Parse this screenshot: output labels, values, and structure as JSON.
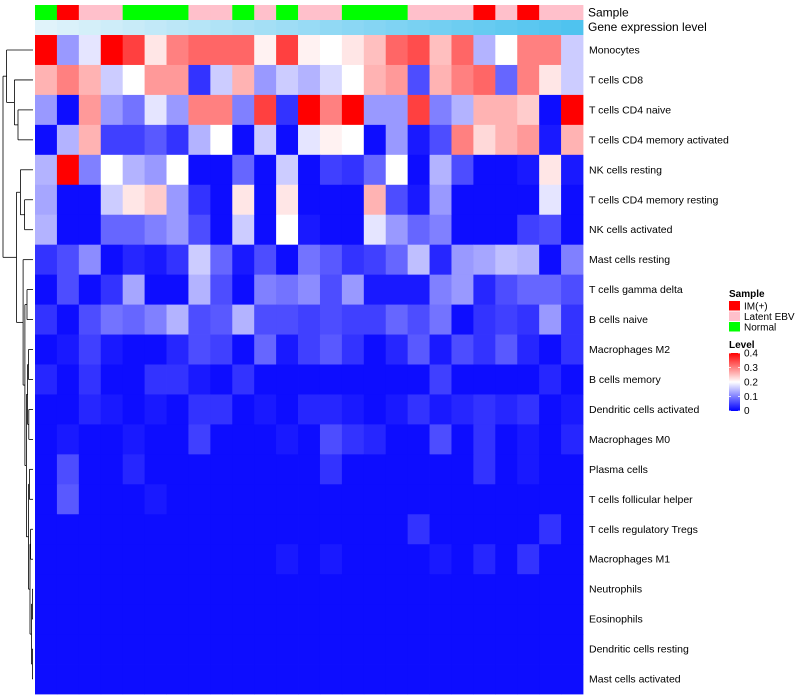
{
  "chart_data": {
    "type": "heatmap",
    "annotation_labels": [
      "Sample",
      "Gene expression level"
    ],
    "columns": {
      "sample_group": [
        "Normal",
        "IM(+)",
        "Latent EBV",
        "Latent EBV",
        "Normal",
        "Normal",
        "Normal",
        "Latent EBV",
        "Latent EBV",
        "Normal",
        "Latent EBV",
        "Normal",
        "Latent EBV",
        "Latent EBV",
        "Normal",
        "Normal",
        "Normal",
        "Latent EBV",
        "Latent EBV",
        "Latent EBV",
        "IM(+)",
        "Latent EBV",
        "IM(+)",
        "Latent EBV",
        "Latent EBV"
      ],
      "gene_expression_level": [
        0.02,
        0.04,
        0.06,
        0.08,
        0.1,
        0.12,
        0.14,
        0.16,
        0.18,
        0.2,
        0.22,
        0.24,
        0.26,
        0.28,
        0.3,
        0.32,
        0.34,
        0.36,
        0.38,
        0.4,
        0.42,
        0.44,
        0.46,
        0.48,
        0.5
      ]
    },
    "rows": [
      "Monocytes",
      "T cells CD8",
      "T cells CD4 naive",
      "T cells CD4 memory activated",
      "NK cells resting",
      "T cells CD4 memory resting",
      "NK cells activated",
      "Mast cells resting",
      "T cells gamma delta",
      "B cells naive",
      "Macrophages M2",
      "B cells memory",
      "Dendritic cells activated",
      "Macrophages M0",
      "Plasma cells",
      "T cells follicular helper",
      "T cells regulatory  Tregs",
      "Macrophages M1",
      "Neutrophils",
      "Eosinophils",
      "Dendritic cells resting",
      "Mast cells activated"
    ],
    "values": [
      [
        0.4,
        0.12,
        0.18,
        0.4,
        0.35,
        0.22,
        0.3,
        0.32,
        0.32,
        0.32,
        0.21,
        0.35,
        0.21,
        0.2,
        0.22,
        0.25,
        0.32,
        0.34,
        0.25,
        0.32,
        0.14,
        0.2,
        0.3,
        0.3,
        0.16
      ],
      [
        0.26,
        0.3,
        0.26,
        0.16,
        0.2,
        0.28,
        0.28,
        0.04,
        0.16,
        0.26,
        0.12,
        0.16,
        0.14,
        0.17,
        0.2,
        0.26,
        0.28,
        0.06,
        0.26,
        0.3,
        0.32,
        0.08,
        0.3,
        0.22,
        0.16
      ],
      [
        0.12,
        0.01,
        0.28,
        0.12,
        0.09,
        0.18,
        0.12,
        0.3,
        0.3,
        0.1,
        0.35,
        0.04,
        0.4,
        0.3,
        0.4,
        0.12,
        0.12,
        0.35,
        0.1,
        0.14,
        0.26,
        0.26,
        0.24,
        0.01,
        0.4
      ],
      [
        0.01,
        0.14,
        0.26,
        0.05,
        0.05,
        0.07,
        0.04,
        0.14,
        0.2,
        0.01,
        0.16,
        0.01,
        0.18,
        0.21,
        0.2,
        0.01,
        0.12,
        0.02,
        0.06,
        0.3,
        0.23,
        0.26,
        0.28,
        0.02,
        0.26
      ],
      [
        0.14,
        0.4,
        0.1,
        0.2,
        0.14,
        0.12,
        0.2,
        0.01,
        0.01,
        0.08,
        0.01,
        0.16,
        0.01,
        0.05,
        0.04,
        0.08,
        0.2,
        0.01,
        0.14,
        0.06,
        0.01,
        0.01,
        0.02,
        0.22,
        0.02
      ],
      [
        0.13,
        0.01,
        0.01,
        0.16,
        0.22,
        0.24,
        0.12,
        0.04,
        0.01,
        0.22,
        0.01,
        0.22,
        0.01,
        0.01,
        0.01,
        0.26,
        0.06,
        0.02,
        0.12,
        0.01,
        0.01,
        0.01,
        0.01,
        0.18,
        0.01
      ],
      [
        0.14,
        0.01,
        0.01,
        0.08,
        0.08,
        0.1,
        0.12,
        0.06,
        0.01,
        0.16,
        0.01,
        0.2,
        0.02,
        0.01,
        0.01,
        0.18,
        0.12,
        0.08,
        0.1,
        0.01,
        0.01,
        0.01,
        0.05,
        0.06,
        0.01
      ],
      [
        0.04,
        0.06,
        0.11,
        0.01,
        0.03,
        0.02,
        0.04,
        0.16,
        0.08,
        0.02,
        0.06,
        0.01,
        0.09,
        0.07,
        0.04,
        0.05,
        0.08,
        0.15,
        0.03,
        0.12,
        0.13,
        0.15,
        0.14,
        0.01,
        0.1
      ],
      [
        0.01,
        0.06,
        0.01,
        0.04,
        0.13,
        0.01,
        0.01,
        0.14,
        0.06,
        0.01,
        0.1,
        0.09,
        0.11,
        0.06,
        0.12,
        0.02,
        0.02,
        0.02,
        0.1,
        0.12,
        0.03,
        0.06,
        0.08,
        0.08,
        0.06
      ],
      [
        0.04,
        0.01,
        0.06,
        0.09,
        0.08,
        0.1,
        0.14,
        0.06,
        0.07,
        0.14,
        0.06,
        0.06,
        0.05,
        0.06,
        0.05,
        0.05,
        0.08,
        0.06,
        0.09,
        0.01,
        0.04,
        0.05,
        0.04,
        0.12,
        0.04
      ],
      [
        0.01,
        0.02,
        0.05,
        0.02,
        0.01,
        0.01,
        0.03,
        0.06,
        0.05,
        0.01,
        0.08,
        0.02,
        0.05,
        0.07,
        0.04,
        0.01,
        0.03,
        0.07,
        0.02,
        0.06,
        0.04,
        0.07,
        0.03,
        0.01,
        0.04
      ],
      [
        0.03,
        0.01,
        0.04,
        0.01,
        0.01,
        0.04,
        0.04,
        0.02,
        0.01,
        0.04,
        0.01,
        0.01,
        0.01,
        0.01,
        0.01,
        0.01,
        0.01,
        0.01,
        0.05,
        0.01,
        0.01,
        0.01,
        0.01,
        0.03,
        0.01
      ],
      [
        0.01,
        0.01,
        0.03,
        0.02,
        0.01,
        0.02,
        0.01,
        0.04,
        0.04,
        0.01,
        0.02,
        0.01,
        0.03,
        0.03,
        0.02,
        0.01,
        0.02,
        0.04,
        0.02,
        0.03,
        0.04,
        0.03,
        0.04,
        0.01,
        0.02
      ],
      [
        0.01,
        0.02,
        0.01,
        0.01,
        0.02,
        0.01,
        0.01,
        0.05,
        0.01,
        0.01,
        0.01,
        0.02,
        0.01,
        0.06,
        0.04,
        0.03,
        0.01,
        0.01,
        0.06,
        0.01,
        0.04,
        0.01,
        0.02,
        0.01,
        0.03
      ],
      [
        0.01,
        0.06,
        0.01,
        0.01,
        0.03,
        0.01,
        0.01,
        0.01,
        0.01,
        0.01,
        0.01,
        0.01,
        0.01,
        0.04,
        0.01,
        0.01,
        0.01,
        0.01,
        0.01,
        0.01,
        0.04,
        0.01,
        0.02,
        0.01,
        0.01
      ],
      [
        0.01,
        0.07,
        0.01,
        0.01,
        0.01,
        0.02,
        0.01,
        0.01,
        0.01,
        0.01,
        0.01,
        0.01,
        0.01,
        0.01,
        0.01,
        0.01,
        0.01,
        0.01,
        0.01,
        0.01,
        0.01,
        0.01,
        0.01,
        0.01,
        0.01
      ],
      [
        0.01,
        0.01,
        0.01,
        0.01,
        0.01,
        0.01,
        0.01,
        0.01,
        0.01,
        0.01,
        0.01,
        0.01,
        0.01,
        0.01,
        0.01,
        0.01,
        0.01,
        0.04,
        0.01,
        0.01,
        0.01,
        0.01,
        0.01,
        0.04,
        0.01
      ],
      [
        0.01,
        0.01,
        0.01,
        0.01,
        0.01,
        0.01,
        0.01,
        0.01,
        0.01,
        0.01,
        0.01,
        0.02,
        0.01,
        0.02,
        0.01,
        0.01,
        0.01,
        0.01,
        0.02,
        0.01,
        0.03,
        0.01,
        0.04,
        0.01,
        0.01
      ],
      [
        0.01,
        0.01,
        0.01,
        0.01,
        0.01,
        0.01,
        0.01,
        0.01,
        0.01,
        0.01,
        0.01,
        0.01,
        0.01,
        0.01,
        0.01,
        0.01,
        0.01,
        0.01,
        0.01,
        0.01,
        0.01,
        0.01,
        0.01,
        0.01,
        0.01
      ],
      [
        0.01,
        0.01,
        0.01,
        0.01,
        0.01,
        0.01,
        0.01,
        0.01,
        0.01,
        0.01,
        0.01,
        0.01,
        0.01,
        0.01,
        0.01,
        0.01,
        0.01,
        0.01,
        0.01,
        0.01,
        0.01,
        0.01,
        0.01,
        0.01,
        0.01
      ],
      [
        0.01,
        0.01,
        0.01,
        0.01,
        0.01,
        0.01,
        0.01,
        0.01,
        0.01,
        0.01,
        0.01,
        0.01,
        0.01,
        0.01,
        0.01,
        0.01,
        0.01,
        0.01,
        0.01,
        0.01,
        0.01,
        0.01,
        0.01,
        0.01,
        0.01
      ],
      [
        0.01,
        0.01,
        0.01,
        0.01,
        0.01,
        0.01,
        0.01,
        0.01,
        0.01,
        0.01,
        0.01,
        0.01,
        0.01,
        0.01,
        0.01,
        0.01,
        0.01,
        0.01,
        0.01,
        0.01,
        0.01,
        0.01,
        0.01,
        0.01,
        0.01
      ]
    ],
    "row_dendrogram": [
      {
        "ids": [
          18,
          19
        ],
        "h": 0.02
      },
      {
        "ids": [
          20,
          21
        ],
        "h": 0.02
      },
      {
        "ids": [
          18,
          19,
          20,
          21
        ],
        "h": 0.05
      },
      {
        "ids": [
          16,
          17
        ],
        "h": 0.08
      },
      {
        "ids": [
          16,
          17,
          18,
          19,
          20,
          21
        ],
        "h": 0.1
      },
      {
        "ids": [
          14,
          15
        ],
        "h": 0.12
      },
      {
        "ids": [
          14,
          15,
          16,
          17,
          18,
          19,
          20,
          21
        ],
        "h": 0.15
      },
      {
        "ids": [
          12,
          13
        ],
        "h": 0.14
      },
      {
        "ids": [
          10,
          11
        ],
        "h": 0.15
      },
      {
        "ids": [
          10,
          11,
          12,
          13
        ],
        "h": 0.18
      },
      {
        "ids": [
          10,
          11,
          12,
          13,
          14,
          15,
          16,
          17,
          18,
          19,
          20,
          21
        ],
        "h": 0.22
      },
      {
        "ids": [
          8,
          9
        ],
        "h": 0.2
      },
      {
        "ids": [
          8,
          9,
          10,
          11,
          12,
          13,
          14,
          15,
          16,
          17,
          18,
          19,
          20,
          21
        ],
        "h": 0.27
      },
      {
        "ids": [
          7,
          8,
          9,
          10,
          11,
          12,
          13,
          14,
          15,
          16,
          17,
          18,
          19,
          20,
          21
        ],
        "h": 0.33
      },
      {
        "ids": [
          5,
          6
        ],
        "h": 0.28
      },
      {
        "ids": [
          4,
          5,
          6
        ],
        "h": 0.42
      },
      {
        "ids": [
          4,
          5,
          6,
          7,
          8,
          9,
          10,
          11,
          12,
          13,
          14,
          15,
          16,
          17,
          18,
          19,
          20,
          21
        ],
        "h": 0.55
      },
      {
        "ids": [
          2,
          3
        ],
        "h": 0.5
      },
      {
        "ids": [
          1,
          2,
          3
        ],
        "h": 0.62
      },
      {
        "ids": [
          0,
          1,
          2,
          3
        ],
        "h": 0.88
      },
      {
        "ids": [
          0,
          1,
          2,
          3,
          4,
          5,
          6,
          7,
          8,
          9,
          10,
          11,
          12,
          13,
          14,
          15,
          16,
          17,
          18,
          19,
          20,
          21
        ],
        "h": 1.0
      }
    ],
    "legend": {
      "sample": {
        "title": "Sample",
        "items": [
          {
            "label": "IM(+)",
            "color": "#ff0000"
          },
          {
            "label": "Latent EBV",
            "color": "#ffc0cb"
          },
          {
            "label": "Normal",
            "color": "#00ff00"
          }
        ]
      },
      "level": {
        "title": "Level",
        "min": 0,
        "max": 0.4,
        "ticks": [
          "0.4",
          "0.3",
          "0.2",
          "0.1",
          "0"
        ],
        "tick_values": [
          0.4,
          0.3,
          0.2,
          0.1,
          0
        ],
        "colors": [
          "#0000ff",
          "#ffffff",
          "#ff0000"
        ]
      }
    },
    "gene_expression_colors": [
      "#e0f3fa",
      "#4fc3ef"
    ]
  }
}
